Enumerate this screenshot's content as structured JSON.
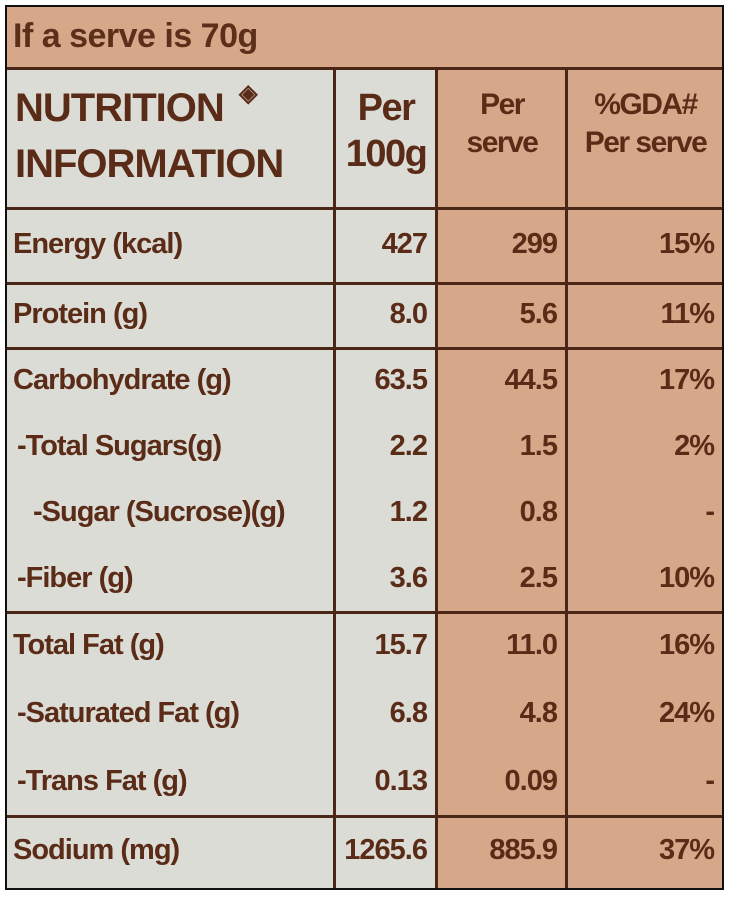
{
  "serve_note": "If a serve is 70g",
  "header": {
    "title": [
      "NUTRITION",
      "INFORMATION"
    ],
    "symbol": "◈",
    "columns": [
      [
        "Per",
        "100g"
      ],
      [
        "Per",
        "serve"
      ],
      [
        "%GDA#",
        "Per serve"
      ]
    ]
  },
  "groups": [
    [
      [
        "Energy (kcal)",
        "427",
        "299",
        "15%"
      ]
    ],
    [
      [
        "Protein (g)",
        "8.0",
        "5.6",
        "11%"
      ]
    ],
    [
      [
        "Carbohydrate (g)",
        "63.5",
        "44.5",
        "17%"
      ],
      [
        "-Total Sugars(g)",
        "2.2",
        "1.5",
        "2%"
      ],
      [
        "-Sugar (Sucrose)(g)",
        "1.2",
        "0.8",
        "-"
      ],
      [
        "-Fiber (g)",
        "3.6",
        "2.5",
        "10%"
      ]
    ],
    [
      [
        "Total Fat (g)",
        "15.7",
        "11.0",
        "16%"
      ],
      [
        "-Saturated Fat (g)",
        "6.8",
        "4.8",
        "24%"
      ],
      [
        "-Trans Fat (g)",
        "0.13",
        "0.09",
        "-"
      ]
    ],
    [
      [
        "Sodium (mg)",
        "1265.6",
        "885.9",
        "37%"
      ]
    ]
  ]
}
